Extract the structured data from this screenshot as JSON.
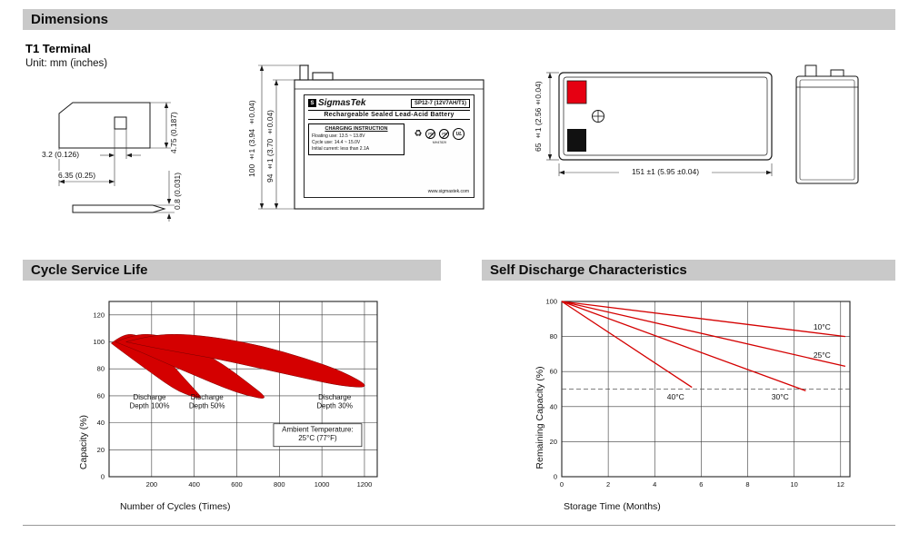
{
  "sections": {
    "dimensions": "Dimensions",
    "cycle_service_life": "Cycle Service Life",
    "self_discharge": "Self Discharge Characteristics"
  },
  "dimensions_block": {
    "terminal_type": "T1 Terminal",
    "unit_note": "Unit: mm (inches)",
    "terminal_dims": {
      "height": "4.75 (0.187)",
      "hole_width": "3.2 (0.126)",
      "tab_width": "6.35 (0.25)",
      "thickness": "0.8 (0.031)"
    },
    "front_view": {
      "total_height": "100 ±1 (3.94 ±0.04)",
      "case_height": "94 ±1 (3.70 ±0.04)"
    },
    "top_view": {
      "width": "65 ±1 (2.56±0.04)",
      "length": "151 ±1 (5.95 ±0.04)"
    }
  },
  "battery_label": {
    "brand": "SigmasTek",
    "model": "SP12-7 (12V7AH/T1)",
    "product_type": "Rechargeable Sealed Lead-Acid Battery",
    "charging_title": "CHARGING INSTRUCTION",
    "charging_line1": "Floating use: 13.5 ~ 13.8V",
    "charging_line2": "Cycle use: 14.4 ~ 15.0V",
    "charging_line3": "Initial current: less than 2.1A",
    "pb_label": "Pb",
    "ul_label": "UL",
    "ul_code": "MH47829",
    "recycle_icon": "♻",
    "website": "www.sigmastek.com"
  },
  "chart_data": [
    {
      "type": "area",
      "title": "Cycle Service Life",
      "xlabel": "Number of Cycles (Times)",
      "ylabel": "Capacity (%)",
      "xlim": [
        0,
        1260
      ],
      "ylim": [
        0,
        130
      ],
      "xticks": [
        200,
        400,
        600,
        800,
        1000,
        1200
      ],
      "yticks": [
        0,
        20,
        40,
        60,
        80,
        100,
        120
      ],
      "grid": true,
      "legend_position": "none",
      "band_color": "#d40000",
      "bands": [
        {
          "name": "Discharge Depth 100%",
          "top": [
            [
              10,
              99
            ],
            [
              60,
              105
            ],
            [
              120,
              106
            ],
            [
              190,
              100
            ],
            [
              260,
              90
            ],
            [
              330,
              77
            ],
            [
              400,
              65
            ],
            [
              440,
              58
            ]
          ],
          "bottom": [
            [
              10,
              99
            ],
            [
              60,
              93
            ],
            [
              120,
              86
            ],
            [
              190,
              78
            ],
            [
              260,
              70
            ],
            [
              330,
              63
            ],
            [
              400,
              59
            ],
            [
              440,
              58
            ]
          ]
        },
        {
          "name": "Discharge Depth 50%",
          "top": [
            [
              30,
              100
            ],
            [
              110,
              105
            ],
            [
              200,
              106
            ],
            [
              300,
              102
            ],
            [
              420,
              94
            ],
            [
              540,
              83
            ],
            [
              650,
              70
            ],
            [
              755,
              57
            ]
          ],
          "bottom": [
            [
              30,
              100
            ],
            [
              110,
              95
            ],
            [
              200,
              89
            ],
            [
              300,
              82
            ],
            [
              420,
              74
            ],
            [
              540,
              66
            ],
            [
              650,
              60
            ],
            [
              755,
              57
            ]
          ]
        },
        {
          "name": "Discharge Depth 30%",
          "top": [
            [
              80,
              100
            ],
            [
              200,
              105
            ],
            [
              340,
              106
            ],
            [
              520,
              103
            ],
            [
              720,
              97
            ],
            [
              920,
              88
            ],
            [
              1100,
              78
            ],
            [
              1235,
              66
            ]
          ],
          "bottom": [
            [
              80,
              100
            ],
            [
              200,
              96
            ],
            [
              340,
              92
            ],
            [
              520,
              87
            ],
            [
              720,
              80
            ],
            [
              920,
              73
            ],
            [
              1100,
              67
            ],
            [
              1235,
              66
            ]
          ]
        }
      ],
      "annotations": [
        {
          "text": "Discharge\nDepth 100%",
          "x": 190,
          "y": 54,
          "box": false
        },
        {
          "text": "Discharge\nDepth 50%",
          "x": 460,
          "y": 54,
          "box": false
        },
        {
          "text": "Discharge\nDepth 30%",
          "x": 1060,
          "y": 54,
          "box": false
        },
        {
          "text": "Ambient Temperature:\n25°C (77°F)",
          "x": 980,
          "y": 30,
          "box": true
        }
      ]
    },
    {
      "type": "line",
      "title": "Self Discharge Characteristics",
      "xlabel": "Storage Time (Months)",
      "ylabel": "Remaining Capacity (%)",
      "xlim": [
        0,
        12.4
      ],
      "ylim": [
        0,
        100
      ],
      "xticks": [
        0,
        2,
        4,
        6,
        8,
        10,
        12
      ],
      "yticks": [
        0,
        20,
        40,
        60,
        80,
        100
      ],
      "grid": true,
      "legend_position": "inline-labels",
      "line_color": "#d40000",
      "dashed_line_y": 50,
      "series": [
        {
          "name": "10°C",
          "points": [
            [
              0,
              100
            ],
            [
              12.2,
              80
            ]
          ],
          "label_at": [
            11.2,
            84
          ]
        },
        {
          "name": "25°C",
          "points": [
            [
              0,
              100
            ],
            [
              12.2,
              63
            ]
          ],
          "label_at": [
            11.2,
            68
          ]
        },
        {
          "name": "30°C",
          "points": [
            [
              0,
              100
            ],
            [
              10.5,
              49
            ]
          ],
          "label_at": [
            9.4,
            44
          ]
        },
        {
          "name": "40°C",
          "points": [
            [
              0,
              100
            ],
            [
              5.6,
              51
            ]
          ],
          "label_at": [
            4.9,
            44
          ]
        }
      ]
    }
  ]
}
